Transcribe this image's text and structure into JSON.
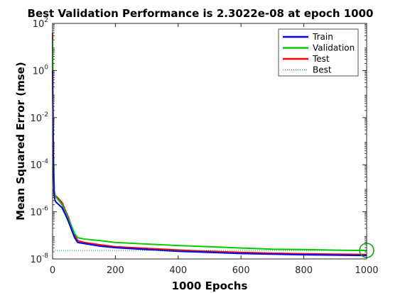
{
  "chart_data": {
    "type": "line",
    "title": "Best Validation Performance is 2.3022e-08 at epoch 1000",
    "xlabel": "1000 Epochs",
    "ylabel": "Mean Squared Error  (mse)",
    "xlim": [
      0,
      1000
    ],
    "ylim": [
      1e-08,
      100
    ],
    "yscale": "log",
    "grid": false,
    "legend_position": "top-right",
    "x_ticks": [
      {
        "value": 0,
        "label": "0"
      },
      {
        "value": 200,
        "label": "200"
      },
      {
        "value": 400,
        "label": "400"
      },
      {
        "value": 600,
        "label": "600"
      },
      {
        "value": 800,
        "label": "800"
      },
      {
        "value": 1000,
        "label": "1000"
      }
    ],
    "y_ticks": [
      {
        "value": 1e-08,
        "base": "10",
        "exp": "-8"
      },
      {
        "value": 1e-06,
        "base": "10",
        "exp": "-6"
      },
      {
        "value": 0.0001,
        "base": "10",
        "exp": "-4"
      },
      {
        "value": 0.01,
        "base": "10",
        "exp": "-2"
      },
      {
        "value": 1,
        "base": "10",
        "exp": "0"
      },
      {
        "value": 100,
        "base": "10",
        "exp": "2"
      }
    ],
    "series": [
      {
        "name": "Train",
        "color": "#0000ff",
        "style": "solid",
        "x": [
          0,
          1,
          2,
          3,
          5,
          8,
          12,
          20,
          30,
          40,
          50,
          60,
          70,
          80,
          100,
          150,
          200,
          300,
          400,
          500,
          600,
          700,
          800,
          900,
          1000
        ],
        "y": [
          1.0,
          0.02,
          0.001,
          5e-05,
          5e-06,
          3e-06,
          2.5e-06,
          2e-06,
          1.5e-06,
          8e-07,
          4e-07,
          1.8e-07,
          8e-08,
          5e-08,
          4.5e-08,
          3.5e-08,
          3e-08,
          2.5e-08,
          2.1e-08,
          1.9e-08,
          1.7e-08,
          1.6e-08,
          1.5e-08,
          1.45e-08,
          1.4e-08
        ]
      },
      {
        "name": "Validation",
        "color": "#00cc00",
        "style": "solid",
        "x": [
          0,
          1,
          2,
          3,
          5,
          8,
          12,
          20,
          30,
          40,
          50,
          60,
          70,
          80,
          100,
          150,
          200,
          300,
          400,
          500,
          600,
          700,
          800,
          900,
          1000
        ],
        "y": [
          20,
          0.05,
          0.002,
          0.0001,
          8e-06,
          5e-06,
          4e-06,
          3e-06,
          2e-06,
          1e-06,
          5e-07,
          2.5e-07,
          1.2e-07,
          8e-08,
          7e-08,
          6e-08,
          5e-08,
          4.3e-08,
          3.7e-08,
          3.3e-08,
          2.9e-08,
          2.6e-08,
          2.5e-08,
          2.35e-08,
          2.3e-08
        ]
      },
      {
        "name": "Test",
        "color": "#ff0000",
        "style": "solid",
        "x": [
          0,
          1,
          2,
          3,
          5,
          8,
          12,
          20,
          30,
          40,
          50,
          60,
          70,
          80,
          100,
          150,
          200,
          300,
          400,
          500,
          600,
          700,
          800,
          900,
          1000
        ],
        "y": [
          40,
          0.08,
          0.003,
          0.00015,
          8e-06,
          5e-06,
          4.5e-06,
          3.5e-06,
          2.5e-06,
          1.2e-06,
          6e-07,
          2.5e-07,
          1e-07,
          6e-08,
          5e-08,
          4e-08,
          3.3e-08,
          2.8e-08,
          2.4e-08,
          2.1e-08,
          1.9e-08,
          1.75e-08,
          1.65e-08,
          1.6e-08,
          1.55e-08
        ]
      },
      {
        "name": "Best",
        "color": "#00aa00",
        "style": "dotted"
      }
    ],
    "best": {
      "epoch": 1000,
      "value": 2.3022e-08,
      "color": "#00aa00"
    }
  }
}
